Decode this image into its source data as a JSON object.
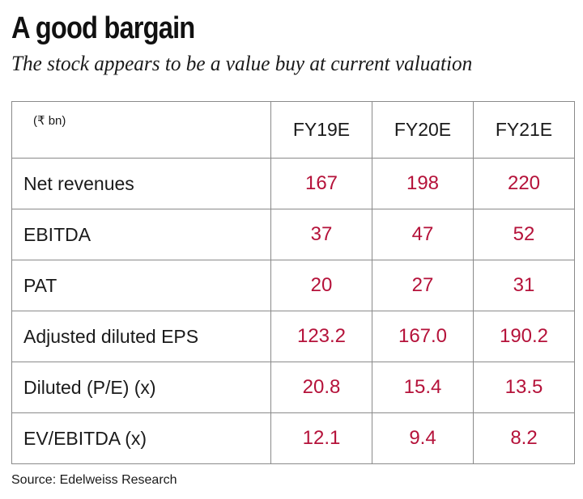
{
  "title": "A good bargain",
  "subtitle": "The stock appears to be a value buy at current valuation",
  "source": "Source: Edelweiss Research",
  "colors": {
    "value": "#b5123a",
    "text": "#1a1a1a",
    "border": "#8a8a8a"
  },
  "chart_data": {
    "type": "table",
    "unit_label": "(₹ bn)",
    "columns": [
      "FY19E",
      "FY20E",
      "FY21E"
    ],
    "rows": [
      {
        "label": "Net revenues",
        "values": [
          "167",
          "198",
          "220"
        ]
      },
      {
        "label": "EBITDA",
        "values": [
          "37",
          "47",
          "52"
        ]
      },
      {
        "label": "PAT",
        "values": [
          "20",
          "27",
          "31"
        ]
      },
      {
        "label": "Adjusted diluted EPS",
        "values": [
          "123.2",
          "167.0",
          "190.2"
        ]
      },
      {
        "label": "Diluted (P/E) (x)",
        "values": [
          "20.8",
          "15.4",
          "13.5"
        ]
      },
      {
        "label": "EV/EBITDA (x)",
        "values": [
          "12.1",
          "9.4",
          "8.2"
        ]
      }
    ]
  }
}
